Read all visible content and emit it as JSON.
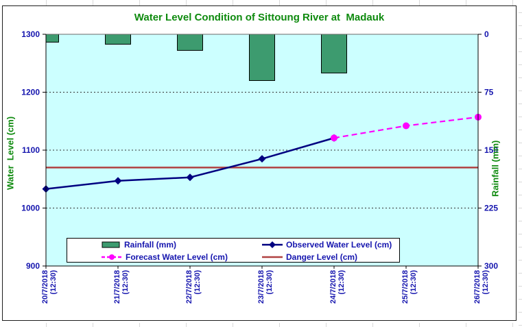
{
  "chart_data": {
    "type": "composite-bar-line",
    "title": "Water Level Condition of Sittoung River at  Madauk",
    "categories": [
      {
        "date": "20/7/2018",
        "time": "(12:30)"
      },
      {
        "date": "21/7/2018",
        "time": "(12:30)"
      },
      {
        "date": "22/7/2018",
        "time": "(12:30)"
      },
      {
        "date": "23/7/2018",
        "time": "(12:30)"
      },
      {
        "date": "24/7/2018",
        "time": "(12:30)"
      },
      {
        "date": "25/7/2018",
        "time": "(12:30)"
      },
      {
        "date": "26/7/2018",
        "time": "(12:30)"
      }
    ],
    "left_axis": {
      "title": "Water  Level (cm)",
      "min": 900,
      "max": 1300,
      "ticks": [
        1300,
        1200,
        1100,
        1000,
        900
      ]
    },
    "right_axis": {
      "title": "Rainfall (mm)",
      "min": 0,
      "max": 300,
      "ticks": [
        0,
        75,
        150,
        225,
        300
      ],
      "bars_hang_from_top": true
    },
    "series": [
      {
        "name": "Rainfall (mm)",
        "type": "bar",
        "axis": "right",
        "color": "#3d9b6f",
        "border": "#000000",
        "values": [
          10,
          13,
          21,
          60,
          50,
          0,
          0
        ]
      },
      {
        "name": "Observed Water Level (cm)",
        "type": "line",
        "axis": "left",
        "color": "#000080",
        "marker": "diamond",
        "values": [
          1033,
          1047,
          1053,
          1085,
          1121,
          null,
          null
        ]
      },
      {
        "name": "Forecast Water Level (cm)",
        "type": "line",
        "axis": "left",
        "color": "#ff00ff",
        "marker": "circle",
        "dashed": true,
        "values": [
          null,
          null,
          null,
          null,
          1121,
          1142,
          1157
        ]
      },
      {
        "name": "Danger Level (cm)",
        "type": "hline",
        "axis": "left",
        "color": "#b04040",
        "value": 1070
      }
    ],
    "gridlines": {
      "horizontal_dashed_at": [
        1200,
        1100,
        1000
      ]
    },
    "colors": {
      "plot_background": "#ccffff",
      "tick_labels": "#1414ae",
      "titles_green": "#0e8a0e",
      "axis_line": "#000000",
      "top_axis_line": "#6a6a6a"
    }
  }
}
